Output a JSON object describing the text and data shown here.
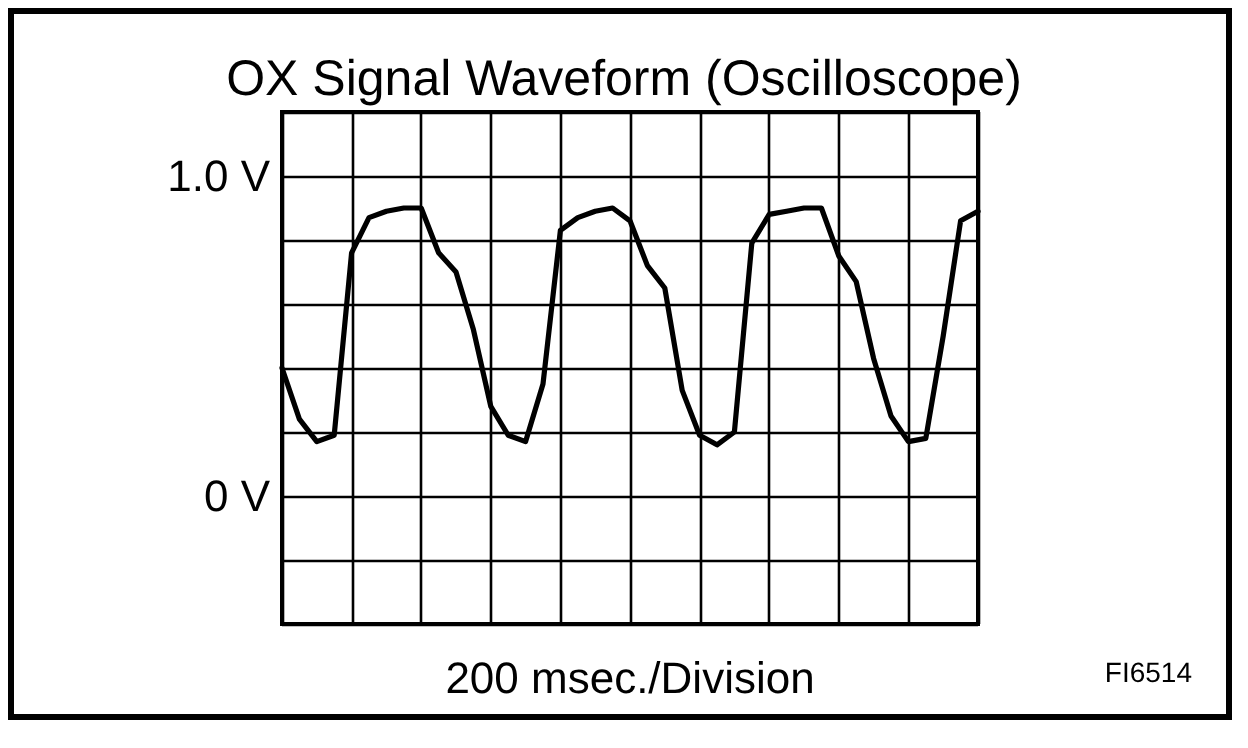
{
  "chart_data": {
    "type": "line",
    "title": "OX Signal Waveform (Oscilloscope)",
    "xlabel": "200 msec./Division",
    "annotations": [
      "FI6514"
    ],
    "categories": [
      null,
      null,
      null,
      null,
      null,
      null,
      null,
      null,
      null,
      null,
      null,
      null,
      null,
      null,
      null,
      null,
      null,
      null,
      null,
      null,
      null,
      null,
      null,
      null,
      null,
      null,
      null,
      null,
      null,
      null,
      null,
      null,
      null,
      null,
      null,
      null,
      null,
      null,
      null,
      null,
      null
    ],
    "series": [
      {
        "color": "#000000",
        "values": [
          0.4,
          0.24,
          0.17,
          0.19,
          0.76,
          0.87,
          0.89,
          0.9,
          0.9,
          0.76,
          0.7,
          0.52,
          0.28,
          0.19,
          0.17,
          0.35,
          0.83,
          0.87,
          0.89,
          0.9,
          0.86,
          0.72,
          0.65,
          0.33,
          0.19,
          0.16,
          0.2,
          0.79,
          0.88,
          0.89,
          0.9,
          0.9,
          0.75,
          0.67,
          0.43,
          0.25,
          0.17,
          0.18,
          0.5,
          0.86,
          0.89
        ]
      }
    ],
    "ylim": [
      -0.4,
      1.2
    ],
    "yticks": [
      {
        "value": -0.4,
        "label": null
      },
      {
        "value": -0.2,
        "label": null
      },
      {
        "value": 0,
        "label": "0 V"
      },
      {
        "value": 0.2,
        "label": null
      },
      {
        "value": 0.4,
        "label": null
      },
      {
        "value": 0.6,
        "label": null
      },
      {
        "value": 0.8,
        "label": null
      },
      {
        "value": 1.0,
        "label": "1.0 V"
      },
      {
        "value": 1.2,
        "label": null
      }
    ],
    "tick_labels": "y",
    "grid": true,
    "line_style": "solid"
  }
}
